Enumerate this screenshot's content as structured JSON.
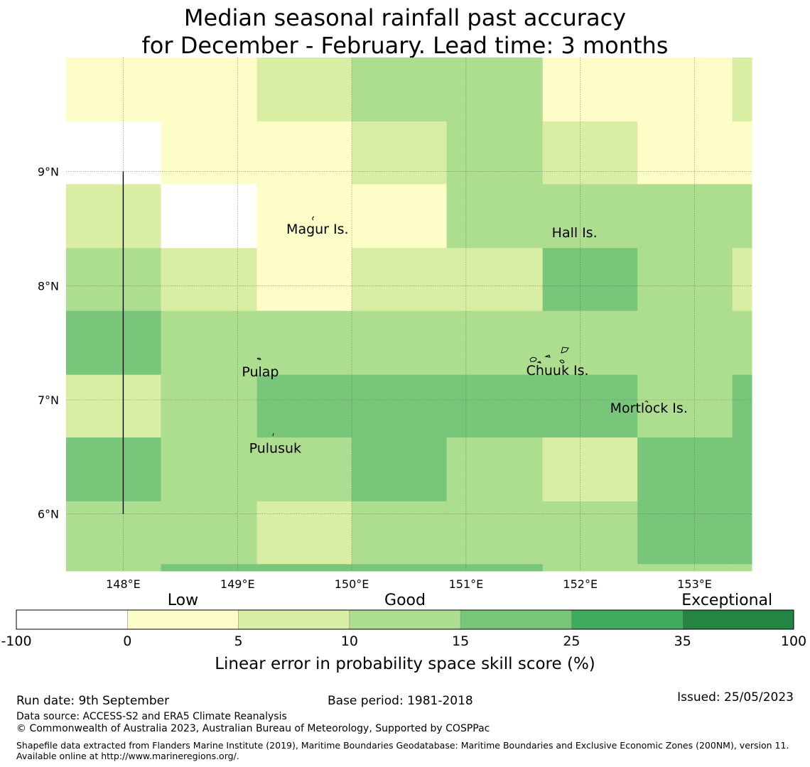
{
  "title": {
    "line1": "Median seasonal rainfall past accuracy",
    "line2": "for December - February. Lead time: 3 months"
  },
  "map": {
    "lon_range": [
      147.5,
      153.5
    ],
    "lat_range": [
      5.5,
      10.0
    ],
    "grid": "dotted",
    "lon_ticks": [
      {
        "value": 148,
        "label": "148°E"
      },
      {
        "value": 149,
        "label": "149°E"
      },
      {
        "value": 150,
        "label": "150°E"
      },
      {
        "value": 151,
        "label": "151°E"
      },
      {
        "value": 152,
        "label": "152°E"
      },
      {
        "value": 153,
        "label": "153°E"
      }
    ],
    "lat_ticks": [
      {
        "value": 9,
        "label": "9°N"
      },
      {
        "value": 8,
        "label": "8°N"
      },
      {
        "value": 7,
        "label": "7°N"
      },
      {
        "value": 6,
        "label": "6°N"
      }
    ],
    "cell_grid": {
      "lon_edges": [
        147.5,
        148.33,
        149.17,
        150.0,
        150.83,
        151.67,
        152.5,
        153.33,
        153.5
      ],
      "lat_edges": [
        10.0,
        9.44,
        8.89,
        8.33,
        7.78,
        7.22,
        6.67,
        6.11,
        5.56,
        5.5
      ],
      "category_rows_top_to_bottom": [
        [
          1,
          1,
          2,
          3,
          3,
          1,
          1,
          2
        ],
        [
          0,
          1,
          1,
          2,
          3,
          2,
          1,
          1
        ],
        [
          2,
          0,
          1,
          1,
          3,
          3,
          3,
          3
        ],
        [
          3,
          2,
          1,
          2,
          2,
          4,
          3,
          2
        ],
        [
          4,
          3,
          3,
          3,
          3,
          3,
          3,
          3
        ],
        [
          2,
          3,
          4,
          4,
          4,
          4,
          3,
          4
        ],
        [
          4,
          3,
          3,
          4,
          3,
          2,
          4,
          4
        ],
        [
          3,
          3,
          2,
          3,
          3,
          3,
          4,
          4
        ],
        [
          3,
          4,
          4,
          4,
          4,
          3,
          3,
          3
        ]
      ]
    },
    "places": [
      {
        "name": "Magur Is.",
        "lon": 149.7,
        "lat": 8.5
      },
      {
        "name": "Hall Is.",
        "lon": 151.95,
        "lat": 8.47
      },
      {
        "name": "Pulap",
        "lon": 149.2,
        "lat": 7.25
      },
      {
        "name": "Chuuk Is.",
        "lon": 151.8,
        "lat": 7.26
      },
      {
        "name": "Mortlock Is.",
        "lon": 152.6,
        "lat": 6.93
      },
      {
        "name": "Pulusuk",
        "lon": 149.33,
        "lat": 6.58
      }
    ],
    "boundary_line": {
      "lon": 148.0,
      "lat_from": 9.0,
      "lat_to": 6.0
    }
  },
  "colorbar": {
    "category_labels": [
      {
        "text": "Low",
        "bin": 1.5
      },
      {
        "text": "Good",
        "bin": 3.5
      },
      {
        "text": "Exceptional",
        "bin": 6.4
      }
    ],
    "bins": [
      {
        "color": "#ffffff"
      },
      {
        "color": "#fdfdc8"
      },
      {
        "color": "#daeea3"
      },
      {
        "color": "#addd8e"
      },
      {
        "color": "#78c679"
      },
      {
        "color": "#41ab5d"
      },
      {
        "color": "#238443"
      }
    ],
    "tick_labels": [
      "-100",
      "0",
      "5",
      "10",
      "15",
      "25",
      "35",
      "100"
    ],
    "xlabel": "Linear error in probability space skill score (%)"
  },
  "footer": {
    "run_date": "Run date: 9th September",
    "base_period": "Base period: 1981-2018",
    "issued": "Issued: 25/05/2023",
    "data_source": "Data source: ACCESS-S2 and ERA5 Climate Reanalysis",
    "copyright": "© Commonwealth of Australia 2023, Australian Bureau of Meteorology, Supported by COSPPac",
    "shapefile": "Shapefile data extracted from Flanders Marine Institute (2019), Maritime Boundaries Geodatabase: Maritime Boundaries and Exclusive Economic Zones (200NM), version 11. Available online at http://www.marineregions.org/."
  }
}
